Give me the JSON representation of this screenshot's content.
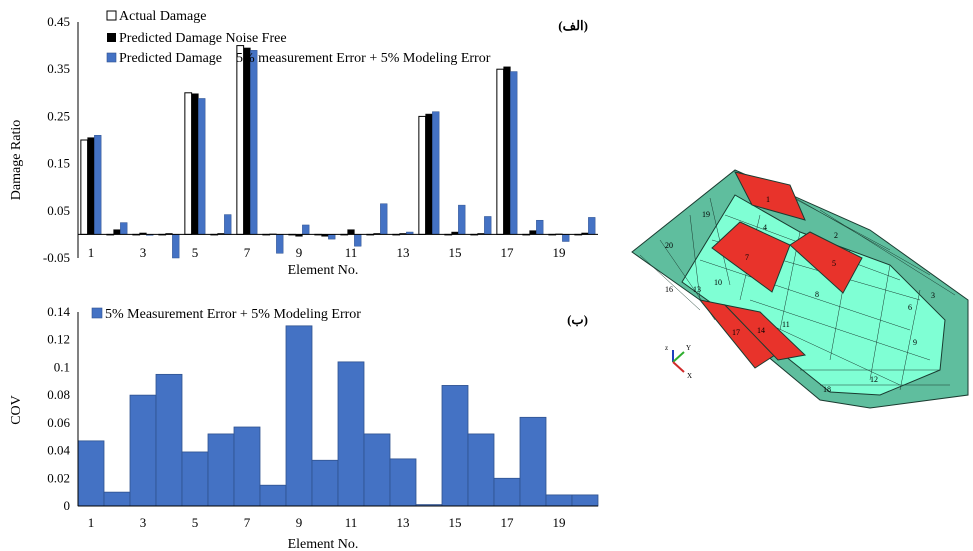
{
  "chart_data": [
    {
      "type": "bar",
      "panel_label": "(الف)",
      "xlabel": "Element No.",
      "ylabel": "Damage Ratio",
      "ylim": [
        -0.05,
        0.45
      ],
      "yticks": [
        "0.45",
        "0.35",
        "0.25",
        "0.15",
        "0.05",
        "-0.05"
      ],
      "ytick_values": [
        0.45,
        0.35,
        0.25,
        0.15,
        0.05,
        -0.05
      ],
      "categories": [
        1,
        2,
        3,
        4,
        5,
        6,
        7,
        8,
        9,
        10,
        11,
        12,
        13,
        14,
        15,
        16,
        17,
        18,
        19,
        20
      ],
      "xtick_labels": [
        "1",
        "3",
        "5",
        "7",
        "9",
        "11",
        "13",
        "15",
        "17",
        "19"
      ],
      "xtick_values": [
        1,
        3,
        5,
        7,
        9,
        11,
        13,
        15,
        17,
        19
      ],
      "legend_position": "top-left",
      "series": [
        {
          "name": "Actual Damage",
          "color": "#ffffff",
          "values": [
            0.2,
            0,
            0,
            0,
            0.3,
            0,
            0.4,
            0,
            0,
            0,
            0,
            0,
            0,
            0.25,
            0,
            0,
            0.35,
            0,
            0,
            0
          ]
        },
        {
          "name": "Predicted Damage Noise Free",
          "color": "#000000",
          "values": [
            0.205,
            0.01,
            0.003,
            0.002,
            0.298,
            0.002,
            0.395,
            0.001,
            -0.004,
            -0.004,
            0.01,
            0.002,
            0.002,
            0.255,
            0.005,
            0.002,
            0.355,
            0.008,
            0.001,
            0.003
          ]
        },
        {
          "name": "Predicted Damage    5% measurement Error + 5% Modeling Error",
          "color": "#4472C4",
          "values": [
            0.21,
            0.025,
            -0.002,
            -0.05,
            0.288,
            0.042,
            0.39,
            -0.04,
            0.02,
            -0.01,
            -0.025,
            0.065,
            0.005,
            0.26,
            0.062,
            0.038,
            0.345,
            0.03,
            -0.015,
            0.036
          ]
        }
      ]
    },
    {
      "type": "bar",
      "panel_label": "(ب)",
      "xlabel": "Element No.",
      "ylabel": "COV",
      "ylim": [
        0,
        0.14
      ],
      "yticks": [
        "0.14",
        "0.12",
        "0.1",
        "0.08",
        "0.06",
        "0.04",
        "0.02",
        "0"
      ],
      "ytick_values": [
        0.14,
        0.12,
        0.1,
        0.08,
        0.06,
        0.04,
        0.02,
        0
      ],
      "categories": [
        1,
        2,
        3,
        4,
        5,
        6,
        7,
        8,
        9,
        10,
        11,
        12,
        13,
        14,
        15,
        16,
        17,
        18,
        19,
        20
      ],
      "xtick_labels": [
        "1",
        "3",
        "5",
        "7",
        "9",
        "11",
        "13",
        "15",
        "17",
        "19"
      ],
      "xtick_values": [
        1,
        3,
        5,
        7,
        9,
        11,
        13,
        15,
        17,
        19
      ],
      "legend_position": "top-left",
      "series": [
        {
          "name": "5% Measurement Error + 5% Modeling Error",
          "color": "#4472C4",
          "values": [
            0.047,
            0.01,
            0.08,
            0.095,
            0.039,
            0.052,
            0.057,
            0.015,
            0.13,
            0.033,
            0.104,
            0.052,
            0.034,
            0.001,
            0.087,
            0.052,
            0.02,
            0.064,
            0.008,
            0.008
          ]
        }
      ]
    }
  ],
  "boat_model": {
    "element_labels": [
      "1",
      "2",
      "3",
      "4",
      "5",
      "6",
      "7",
      "8",
      "9",
      "10",
      "11",
      "12",
      "13",
      "14",
      "16",
      "17",
      "18",
      "19",
      "20"
    ],
    "axes": {
      "z": "z",
      "y": "Y",
      "x": "X"
    },
    "colors": {
      "mesh": "#5FBE9E",
      "mesh_light": "#7FFFD4",
      "damaged": "#E8332B"
    }
  }
}
